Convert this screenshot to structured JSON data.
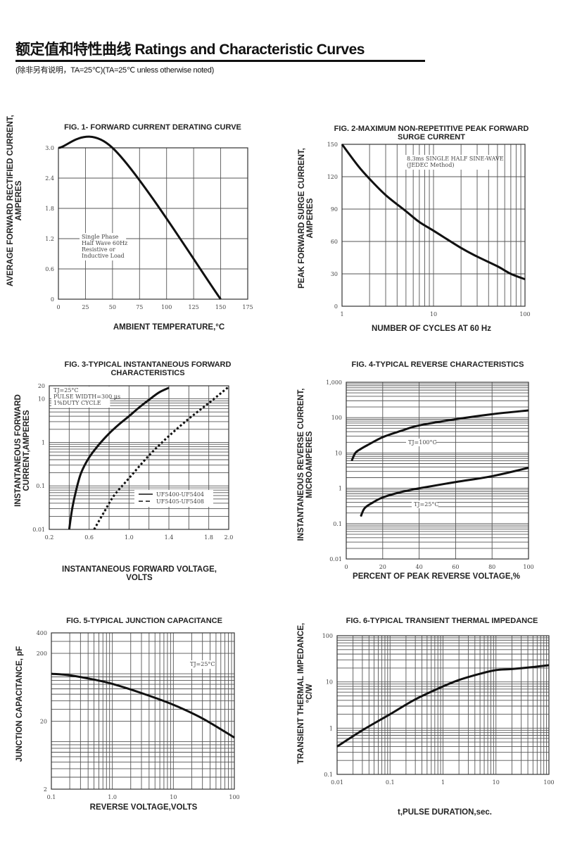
{
  "header": {
    "title": "额定值和特性曲线 Ratings and Characteristic Curves",
    "subtitle": "(除非另有说明，TA=25℃)(TA=25℃  unless otherwise noted)"
  },
  "chart_data": [
    {
      "type": "line",
      "title": [
        "FIG. 1- FORWARD CURRENT DERATING CURVE"
      ],
      "xlabel": [
        "AMBIENT TEMPERATURE,°C"
      ],
      "ylabel": [
        "AVERAGE FORWARD RECTIFIED CURRENT,",
        "AMPERES"
      ],
      "xscale": "linear",
      "yscale": "linear",
      "xlim": [
        0,
        175
      ],
      "ylim": [
        0,
        3.0
      ],
      "xticks": [
        [
          0,
          "0"
        ],
        [
          25,
          "25"
        ],
        [
          50,
          "50"
        ],
        [
          75,
          "75"
        ],
        [
          100,
          "100"
        ],
        [
          125,
          "125"
        ],
        [
          150,
          "150"
        ],
        [
          175,
          "175"
        ]
      ],
      "yticks": [
        [
          0,
          "0"
        ],
        [
          0.6,
          "0.6"
        ],
        [
          1.2,
          "1.2"
        ],
        [
          1.8,
          "1.8"
        ],
        [
          2.4,
          "2.4"
        ],
        [
          3.0,
          "3.0"
        ]
      ],
      "grid": true,
      "annotations": [
        [
          "Single Phase",
          "Half Wave 60Hz",
          "Resistive or",
          "Inductive Load"
        ]
      ],
      "series": [
        {
          "style": "solid",
          "values": [
            [
              0,
              3.0
            ],
            [
              50,
              3.0
            ],
            [
              150,
              0
            ]
          ]
        }
      ]
    },
    {
      "type": "line",
      "title": [
        "FIG. 2-MAXIMUM NON-REPETITIVE PEAK FORWARD",
        "SURGE CURRENT"
      ],
      "xlabel": [
        "NUMBER OF CYCLES AT 60 Hz"
      ],
      "ylabel": [
        "PEAK  FORWARD SURGE CURRENT,",
        "AMPERES"
      ],
      "xscale": "log",
      "yscale": "linear",
      "xlim": [
        1,
        100
      ],
      "ylim": [
        0,
        150
      ],
      "xticks": [
        [
          1,
          "1"
        ],
        [
          10,
          "10"
        ],
        [
          100,
          "100"
        ]
      ],
      "yticks": [
        [
          0,
          "0"
        ],
        [
          30,
          "30"
        ],
        [
          60,
          "60"
        ],
        [
          90,
          "90"
        ],
        [
          120,
          "120"
        ],
        [
          150,
          "150"
        ]
      ],
      "grid": true,
      "annotations": [
        [
          "8.3ms SINGLE HALF SINE-WAVE",
          "(JEDEC Method)"
        ]
      ],
      "series": [
        {
          "style": "solid",
          "values": [
            [
              1,
              150
            ],
            [
              1.5,
              130
            ],
            [
              2,
              118
            ],
            [
              3,
              103
            ],
            [
              5,
              88
            ],
            [
              7,
              78
            ],
            [
              10,
              70
            ],
            [
              20,
              54
            ],
            [
              30,
              46
            ],
            [
              50,
              37
            ],
            [
              70,
              30
            ],
            [
              100,
              25
            ]
          ]
        }
      ]
    },
    {
      "type": "line",
      "title": [
        "FIG. 3-TYPICAL INSTANTANEOUS FORWARD",
        "CHARACTERISTICS"
      ],
      "xlabel": [
        "INSTANTANEOUS FORWARD VOLTAGE,",
        "VOLTS"
      ],
      "ylabel": [
        "INSTANTANEOUS FORWARD",
        "CURRENT,AMPERES"
      ],
      "xscale": "linear",
      "yscale": "log",
      "xlim": [
        0.2,
        2.0
      ],
      "ylim": [
        0.01,
        20
      ],
      "xticks": [
        [
          0.2,
          "0.2"
        ],
        [
          0.6,
          "0.6"
        ],
        [
          1.0,
          "1.0"
        ],
        [
          1.4,
          "1.4"
        ],
        [
          1.8,
          "1.8"
        ],
        [
          2.0,
          "2.0"
        ]
      ],
      "xgrid": [
        0.2,
        0.4,
        0.6,
        0.8,
        1.0,
        1.2,
        1.4,
        1.6,
        1.8,
        2.0
      ],
      "yticks": [
        [
          0.01,
          "0.01"
        ],
        [
          0.1,
          "0.1"
        ],
        [
          1,
          "1"
        ],
        [
          10,
          "10"
        ],
        [
          20,
          "20"
        ]
      ],
      "grid": true,
      "annotations": [
        [
          "TJ=25°C",
          "PULSE WIDTH=300 µs",
          "1%DUTY CYCLE"
        ]
      ],
      "legend": "bottom-right",
      "series": [
        {
          "name": "UF5400-UF5404",
          "style": "solid",
          "values": [
            [
              0.4,
              0.01
            ],
            [
              0.43,
              0.03
            ],
            [
              0.47,
              0.08
            ],
            [
              0.52,
              0.2
            ],
            [
              0.6,
              0.45
            ],
            [
              0.7,
              0.9
            ],
            [
              0.8,
              1.6
            ],
            [
              0.9,
              2.6
            ],
            [
              1.0,
              4
            ],
            [
              1.1,
              6.3
            ],
            [
              1.2,
              9.5
            ],
            [
              1.3,
              14
            ],
            [
              1.4,
              18
            ]
          ]
        },
        {
          "name": "UF5405-UF5408",
          "style": "dashed",
          "values": [
            [
              0.65,
              0.01
            ],
            [
              0.75,
              0.025
            ],
            [
              0.85,
              0.06
            ],
            [
              1.0,
              0.15
            ],
            [
              1.2,
              0.5
            ],
            [
              1.4,
              1.4
            ],
            [
              1.6,
              3.5
            ],
            [
              1.8,
              8
            ],
            [
              2.0,
              19
            ]
          ]
        }
      ]
    },
    {
      "type": "line",
      "title": [
        "FIG. 4-TYPICAL REVERSE CHARACTERISTICS"
      ],
      "xlabel": [
        "PERCENT OF PEAK REVERSE VOLTAGE,%"
      ],
      "ylabel": [
        "INSTANTANEOUS REVERSE CURRENT,",
        "MICROAMPERES"
      ],
      "xscale": "linear",
      "yscale": "log",
      "xlim": [
        0,
        100
      ],
      "ylim": [
        0.01,
        1000
      ],
      "xticks": [
        [
          0,
          "0"
        ],
        [
          20,
          "20"
        ],
        [
          40,
          "40"
        ],
        [
          60,
          "60"
        ],
        [
          80,
          "80"
        ],
        [
          100,
          "100"
        ]
      ],
      "yticks": [
        [
          0.01,
          "0.01"
        ],
        [
          0.1,
          "0.1"
        ],
        [
          1,
          "1"
        ],
        [
          10,
          "10"
        ],
        [
          100,
          "100"
        ],
        [
          1000,
          "1,000"
        ]
      ],
      "grid": true,
      "series": [
        {
          "name": "TJ=100°C",
          "style": "solid",
          "values": [
            [
              3,
              6
            ],
            [
              5,
              10
            ],
            [
              8,
              13
            ],
            [
              12,
              17
            ],
            [
              20,
              28
            ],
            [
              30,
              42
            ],
            [
              40,
              60
            ],
            [
              60,
              90
            ],
            [
              80,
              125
            ],
            [
              100,
              160
            ]
          ]
        },
        {
          "name": "TJ=25°C",
          "style": "solid",
          "values": [
            [
              8,
              0.16
            ],
            [
              10,
              0.27
            ],
            [
              14,
              0.38
            ],
            [
              20,
              0.55
            ],
            [
              30,
              0.78
            ],
            [
              40,
              1.0
            ],
            [
              60,
              1.5
            ],
            [
              80,
              2.2
            ],
            [
              100,
              3.8
            ]
          ]
        }
      ]
    },
    {
      "type": "line",
      "title": [
        "FIG. 5-TYPICAL JUNCTION CAPACITANCE"
      ],
      "xlabel": [
        "REVERSE VOLTAGE,VOLTS"
      ],
      "ylabel": [
        "JUNCTION CAPACITANCE, pF"
      ],
      "xscale": "log",
      "yscale": "log",
      "xlim": [
        0.1,
        100
      ],
      "ylim": [
        2,
        400
      ],
      "xticks": [
        [
          0.1,
          "0.1"
        ],
        [
          1,
          "1.0"
        ],
        [
          10,
          "10"
        ],
        [
          100,
          "100"
        ]
      ],
      "yticks": [
        [
          2,
          "2"
        ],
        [
          20,
          "20"
        ],
        [
          200,
          "200"
        ],
        [
          400,
          "400"
        ]
      ],
      "grid": true,
      "annotations": [
        [
          "TJ=25°C"
        ]
      ],
      "series": [
        {
          "style": "solid",
          "values": [
            [
              0.1,
              100
            ],
            [
              0.2,
              95
            ],
            [
              0.5,
              82
            ],
            [
              1,
              71
            ],
            [
              3,
              52
            ],
            [
              10,
              35
            ],
            [
              30,
              22
            ],
            [
              100,
              11.5
            ]
          ]
        }
      ]
    },
    {
      "type": "line",
      "title": [
        "FIG. 6-TYPICAL TRANSIENT THERMAL IMPEDANCE"
      ],
      "xlabel": [
        "t,PULSE DURATION,sec."
      ],
      "ylabel": [
        "TRANSIENT THERMAL IMPEDANCE,",
        "°C/W"
      ],
      "xscale": "log",
      "yscale": "log",
      "xlim": [
        0.01,
        100
      ],
      "ylim": [
        0.1,
        100
      ],
      "xticks": [
        [
          0.01,
          "0.01"
        ],
        [
          0.1,
          "0.1"
        ],
        [
          1,
          "1"
        ],
        [
          10,
          "10"
        ],
        [
          100,
          "100"
        ]
      ],
      "yticks": [
        [
          0.1,
          "0.1"
        ],
        [
          1,
          "1"
        ],
        [
          10,
          "10"
        ],
        [
          100,
          "100"
        ]
      ],
      "grid": true,
      "series": [
        {
          "style": "solid",
          "values": [
            [
              0.01,
              0.4
            ],
            [
              0.03,
              0.9
            ],
            [
              0.1,
              2
            ],
            [
              0.3,
              4.2
            ],
            [
              1,
              8
            ],
            [
              2,
              11
            ],
            [
              5,
              15
            ],
            [
              10,
              18
            ],
            [
              20,
              19
            ],
            [
              50,
              21
            ],
            [
              100,
              23
            ]
          ]
        }
      ]
    }
  ],
  "colors": {
    "ink": "#111111",
    "grid": "#555555",
    "background": "#ffffff"
  }
}
